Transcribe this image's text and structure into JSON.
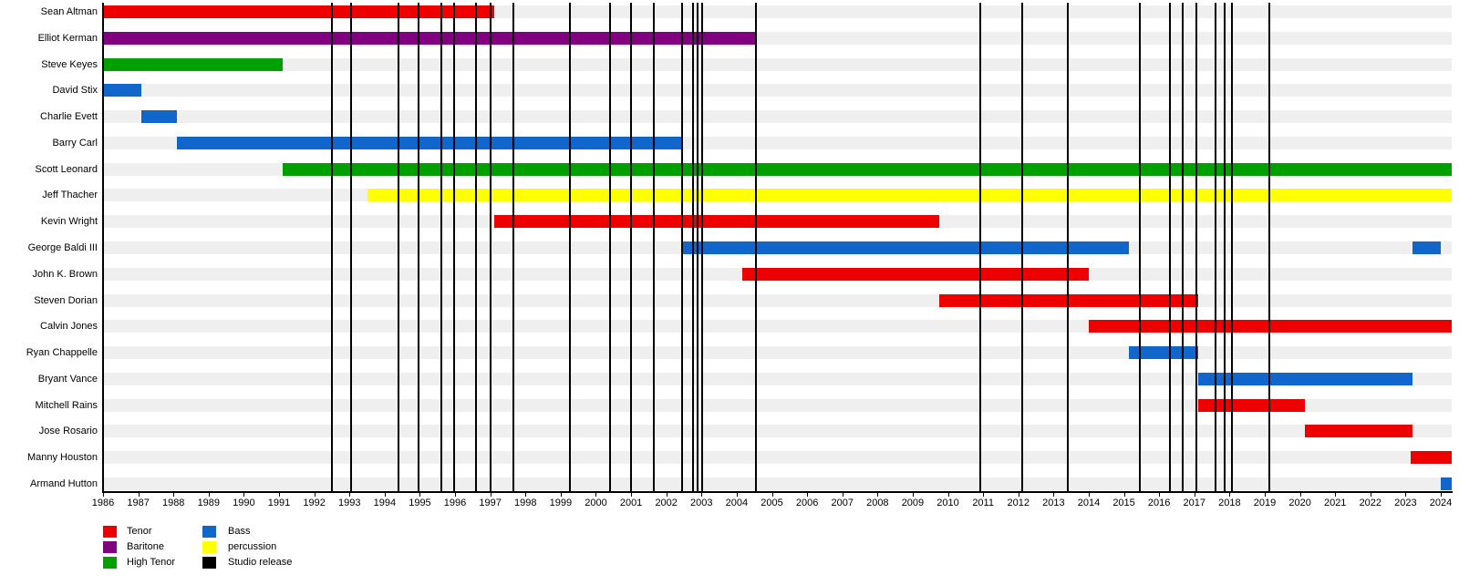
{
  "colors": {
    "tenor": "#ee0000",
    "baritone": "#800080",
    "high_tenor": "#00a000",
    "bass": "#1166cc",
    "percussion": "#ffff00",
    "studio_release": "#000000",
    "row_stripe": "#efefef"
  },
  "chart_data": {
    "type": "timeline",
    "x_axis": {
      "min": 1986,
      "max": 2024.31,
      "tick_years": [
        1986,
        1987,
        1988,
        1989,
        1990,
        1991,
        1992,
        1993,
        1994,
        1995,
        1996,
        1997,
        1998,
        1999,
        2000,
        2001,
        2002,
        2003,
        2004,
        2005,
        2006,
        2007,
        2008,
        2009,
        2010,
        2011,
        2012,
        2013,
        2014,
        2015,
        2016,
        2017,
        2018,
        2019,
        2020,
        2021,
        2022,
        2023,
        2024
      ]
    },
    "members": [
      {
        "name": "Sean Altman",
        "role": "Tenor",
        "color_key": "tenor",
        "stints": [
          [
            1986.0,
            1997.1
          ]
        ]
      },
      {
        "name": "Elliot Kerman",
        "role": "Baritone",
        "color_key": "baritone",
        "stints": [
          [
            1986.0,
            2004.55
          ]
        ]
      },
      {
        "name": "Steve Keyes",
        "role": "High Tenor",
        "color_key": "high_tenor",
        "stints": [
          [
            1986.0,
            1991.1
          ]
        ]
      },
      {
        "name": "David Stix",
        "role": "Bass",
        "color_key": "bass",
        "stints": [
          [
            1986.0,
            1987.1
          ]
        ]
      },
      {
        "name": "Charlie Evett",
        "role": "Bass",
        "color_key": "bass",
        "stints": [
          [
            1987.1,
            1988.1
          ]
        ]
      },
      {
        "name": "Barry Carl",
        "role": "Bass",
        "color_key": "bass",
        "stints": [
          [
            1988.1,
            2002.45
          ]
        ]
      },
      {
        "name": "Scott Leonard",
        "role": "High Tenor",
        "color_key": "high_tenor",
        "stints": [
          [
            1991.1,
            2024.31
          ]
        ]
      },
      {
        "name": "Jeff Thacher",
        "role": "percussion",
        "color_key": "percussion",
        "stints": [
          [
            1993.5,
            2024.31
          ]
        ]
      },
      {
        "name": "Kevin Wright",
        "role": "Tenor",
        "color_key": "tenor",
        "stints": [
          [
            1997.1,
            2009.75
          ]
        ]
      },
      {
        "name": "George Baldi III",
        "role": "Bass",
        "color_key": "bass",
        "stints": [
          [
            2002.45,
            2015.15
          ],
          [
            2023.2,
            2024.0
          ]
        ]
      },
      {
        "name": "John K. Brown",
        "role": "Tenor",
        "color_key": "tenor",
        "stints": [
          [
            2004.15,
            2014.0
          ]
        ]
      },
      {
        "name": "Steven Dorian",
        "role": "Tenor",
        "color_key": "tenor",
        "stints": [
          [
            2009.75,
            2017.1
          ]
        ]
      },
      {
        "name": "Calvin Jones",
        "role": "Tenor",
        "color_key": "tenor",
        "stints": [
          [
            2014.0,
            2024.31
          ]
        ]
      },
      {
        "name": "Ryan Chappelle",
        "role": "Bass",
        "color_key": "bass",
        "stints": [
          [
            2015.15,
            2017.1
          ]
        ]
      },
      {
        "name": "Bryant Vance",
        "role": "Bass",
        "color_key": "bass",
        "stints": [
          [
            2017.1,
            2023.2
          ]
        ]
      },
      {
        "name": "Mitchell Rains",
        "role": "Tenor",
        "color_key": "tenor",
        "stints": [
          [
            2017.1,
            2020.15
          ]
        ]
      },
      {
        "name": "Jose Rosario",
        "role": "Tenor",
        "color_key": "tenor",
        "stints": [
          [
            2020.15,
            2023.2
          ]
        ]
      },
      {
        "name": "Manny Houston",
        "role": "Tenor",
        "color_key": "tenor",
        "stints": [
          [
            2023.15,
            2024.31
          ]
        ]
      },
      {
        "name": "Armand Hutton",
        "role": "Bass",
        "color_key": "bass",
        "stints": [
          [
            2024.0,
            2024.31
          ]
        ]
      }
    ],
    "studio_release_years": [
      1992.5,
      1993.05,
      1994.4,
      1994.95,
      1995.6,
      1995.96,
      1996.6,
      1997.02,
      1997.65,
      1999.27,
      2000.4,
      2001.0,
      2001.65,
      2002.45,
      2002.76,
      2002.9,
      2003.03,
      2004.55,
      2010.92,
      2012.1,
      2013.4,
      2015.45,
      2016.3,
      2016.67,
      2017.07,
      2017.6,
      2017.87,
      2018.08,
      2019.12
    ],
    "legend": {
      "columns": [
        [
          {
            "label": "Tenor",
            "color_key": "tenor"
          },
          {
            "label": "Baritone",
            "color_key": "baritone"
          },
          {
            "label": "High Tenor",
            "color_key": "high_tenor"
          }
        ],
        [
          {
            "label": "Bass",
            "color_key": "bass"
          },
          {
            "label": "percussion",
            "color_key": "percussion"
          },
          {
            "label": "Studio release",
            "color_key": "studio_release"
          }
        ]
      ]
    }
  }
}
